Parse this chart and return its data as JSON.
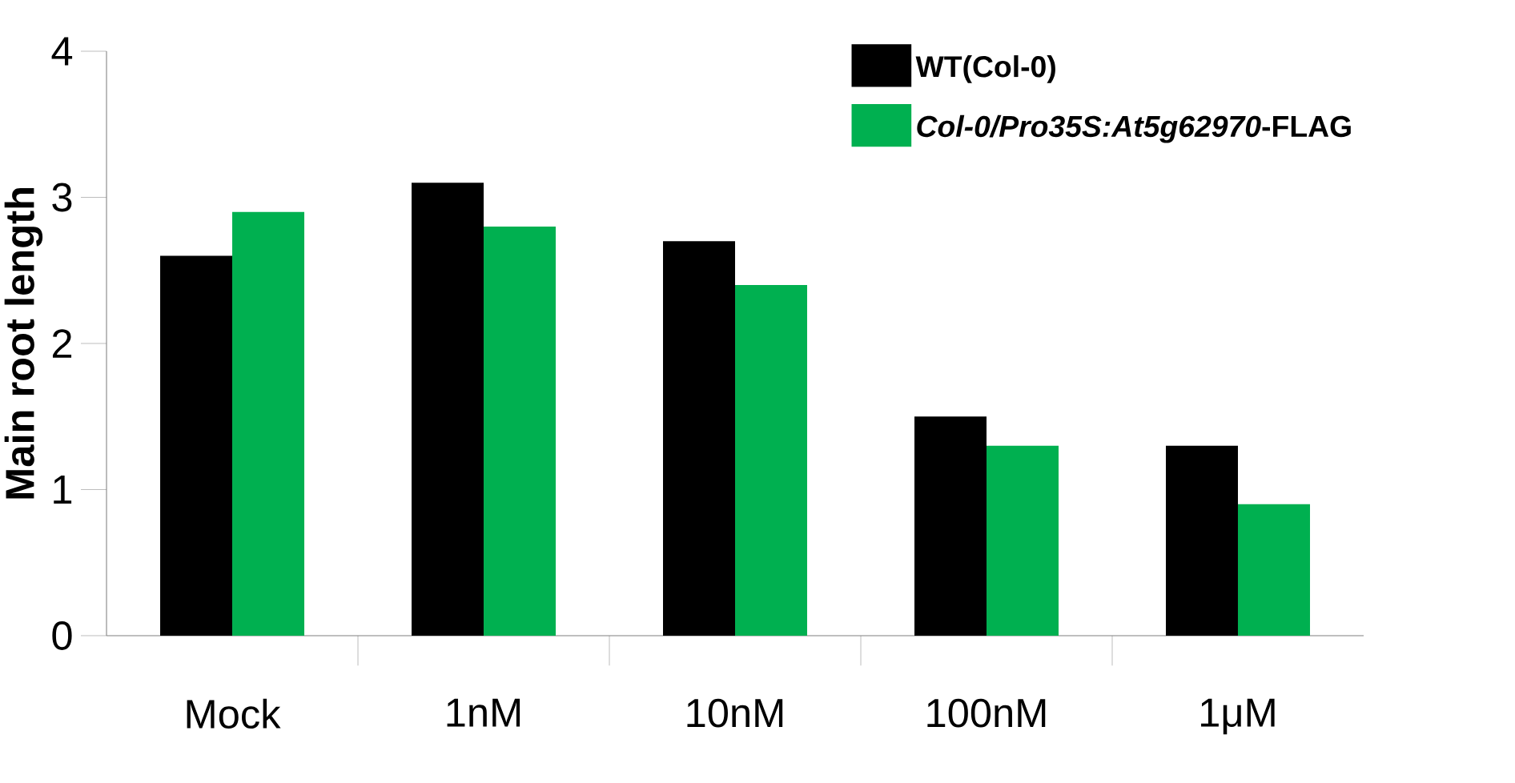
{
  "chart_data": {
    "type": "bar",
    "ylabel": "Main root length",
    "categories": [
      "Mock",
      "1nM",
      "10nM",
      "100nM",
      "1μM"
    ],
    "series": [
      {
        "name": "WT(Col-0)",
        "color": "#000000",
        "values": [
          2.6,
          3.1,
          2.7,
          1.5,
          1.3
        ]
      },
      {
        "name": "*Col-0/Pro35S:At5g62970*-FLAG",
        "color": "#00b050",
        "values": [
          2.9,
          2.8,
          2.4,
          1.3,
          0.9
        ]
      }
    ],
    "ylim": [
      0,
      4
    ],
    "yticks": [
      0,
      1,
      2,
      3,
      4
    ],
    "legend": "top right"
  }
}
